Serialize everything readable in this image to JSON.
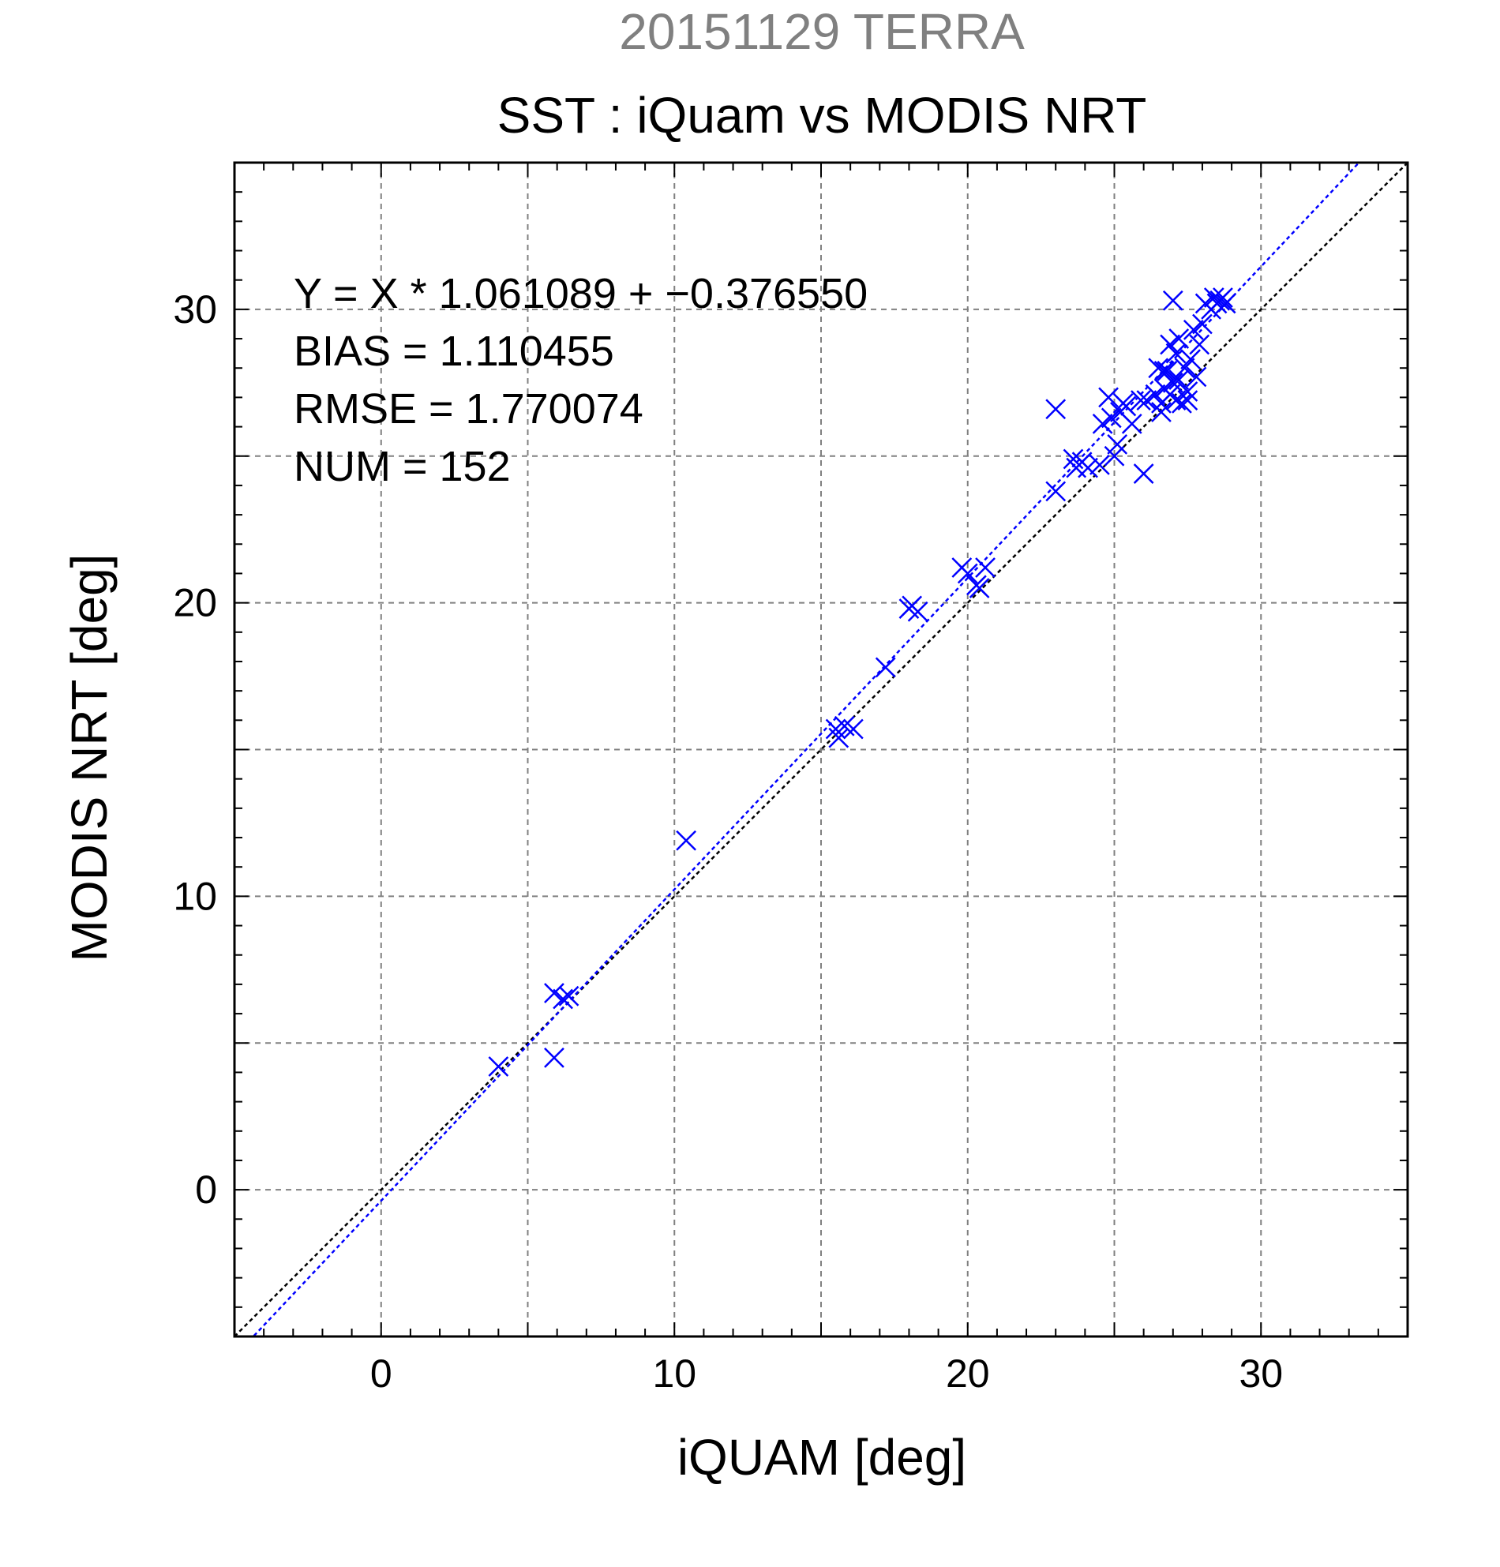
{
  "chart_data": {
    "type": "scatter",
    "super_title": "20151129 TERRA",
    "title": "SST : iQuam vs MODIS NRT",
    "xlabel": "iQUAM [deg]",
    "ylabel": "MODIS NRT [deg]",
    "xlim": [
      -5,
      35
    ],
    "ylim": [
      -5,
      35
    ],
    "xticks": [
      0,
      10,
      20,
      30
    ],
    "yticks": [
      0,
      10,
      20,
      30
    ],
    "grid": true,
    "stats": [
      "Y = X * 1.061089 + −0.376550",
      "BIAS = 1.110455",
      "RMSE = 1.770074",
      "NUM = 152"
    ],
    "fit": {
      "slope": 1.061089,
      "intercept": -0.37655,
      "color": "#0000ff"
    },
    "reference_line": {
      "slope": 1,
      "intercept": 0,
      "color": "#000000"
    },
    "marker_color": "#0000ff",
    "points": [
      [
        4.0,
        4.2
      ],
      [
        5.9,
        6.7
      ],
      [
        6.2,
        6.5
      ],
      [
        6.4,
        6.6
      ],
      [
        5.9,
        4.5
      ],
      [
        10.4,
        11.9
      ],
      [
        15.5,
        15.7
      ],
      [
        15.6,
        15.4
      ],
      [
        15.8,
        15.8
      ],
      [
        16.1,
        15.7
      ],
      [
        17.2,
        17.8
      ],
      [
        18.0,
        19.8
      ],
      [
        18.1,
        19.9
      ],
      [
        18.3,
        19.7
      ],
      [
        19.8,
        21.2
      ],
      [
        20.0,
        21.0
      ],
      [
        20.3,
        20.6
      ],
      [
        20.6,
        21.2
      ],
      [
        20.4,
        20.5
      ],
      [
        23.0,
        26.6
      ],
      [
        23.0,
        23.8
      ],
      [
        23.6,
        24.9
      ],
      [
        23.7,
        24.6
      ],
      [
        23.9,
        24.8
      ],
      [
        24.1,
        24.6
      ],
      [
        24.5,
        24.7
      ],
      [
        24.6,
        26.1
      ],
      [
        24.8,
        27.0
      ],
      [
        24.9,
        26.3
      ],
      [
        25.0,
        25.0
      ],
      [
        25.1,
        25.4
      ],
      [
        25.2,
        26.5
      ],
      [
        25.3,
        26.8
      ],
      [
        25.4,
        26.7
      ],
      [
        25.6,
        26.1
      ],
      [
        25.9,
        26.9
      ],
      [
        26.0,
        24.4
      ],
      [
        26.1,
        26.9
      ],
      [
        26.4,
        27.1
      ],
      [
        26.6,
        26.5
      ],
      [
        26.7,
        27.3
      ],
      [
        26.8,
        27.9
      ],
      [
        26.9,
        28.8
      ],
      [
        27.0,
        30.3
      ],
      [
        27.0,
        27.5
      ],
      [
        27.1,
        28.5
      ],
      [
        27.2,
        29.0
      ],
      [
        27.3,
        26.8
      ],
      [
        27.4,
        28.0
      ],
      [
        27.5,
        27.2
      ],
      [
        27.6,
        28.3
      ],
      [
        27.7,
        29.3
      ],
      [
        27.8,
        27.7
      ],
      [
        27.9,
        28.8
      ],
      [
        28.0,
        29.5
      ],
      [
        28.1,
        30.2
      ],
      [
        28.3,
        30.0
      ],
      [
        28.4,
        30.4
      ],
      [
        28.5,
        30.2
      ],
      [
        28.6,
        30.3
      ],
      [
        28.7,
        30.4
      ],
      [
        28.8,
        30.2
      ],
      [
        26.5,
        28.0
      ],
      [
        26.7,
        27.9
      ],
      [
        27.2,
        27.6
      ],
      [
        27.5,
        26.9
      ],
      [
        26.9,
        27.1
      ],
      [
        27.1,
        26.9
      ],
      [
        26.6,
        26.8
      ]
    ]
  }
}
